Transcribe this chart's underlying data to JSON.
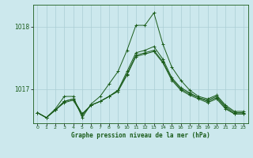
{
  "title": "Graphe pression niveau de la mer (hPa)",
  "background_color": "#cce8ed",
  "grid_color": "#aacdd4",
  "line_color": "#1a5c1a",
  "xlim": [
    -0.5,
    23.5
  ],
  "ylim": [
    1016.45,
    1018.35
  ],
  "yticks": [
    1017,
    1018
  ],
  "xticks": [
    0,
    1,
    2,
    3,
    4,
    5,
    6,
    7,
    8,
    9,
    10,
    11,
    12,
    13,
    14,
    15,
    16,
    17,
    18,
    19,
    20,
    21,
    22,
    23
  ],
  "series": [
    [
      1016.62,
      1016.54,
      1016.68,
      1016.88,
      1016.88,
      1016.54,
      1016.76,
      1016.88,
      1017.08,
      1017.28,
      1017.62,
      1018.02,
      1018.02,
      1018.22,
      1017.72,
      1017.35,
      1017.14,
      1016.98,
      1016.88,
      1016.84,
      1016.9,
      1016.74,
      1016.64,
      1016.64
    ],
    [
      1016.62,
      1016.54,
      1016.66,
      1016.78,
      1016.82,
      1016.58,
      1016.74,
      1016.8,
      1016.88,
      1016.98,
      1017.28,
      1017.58,
      1017.62,
      1017.68,
      1017.48,
      1017.18,
      1017.02,
      1016.94,
      1016.86,
      1016.82,
      1016.88,
      1016.72,
      1016.62,
      1016.62
    ],
    [
      1016.62,
      1016.54,
      1016.66,
      1016.8,
      1016.84,
      1016.6,
      1016.74,
      1016.8,
      1016.88,
      1016.98,
      1017.24,
      1017.54,
      1017.58,
      1017.62,
      1017.44,
      1017.16,
      1017.0,
      1016.92,
      1016.86,
      1016.8,
      1016.86,
      1016.7,
      1016.6,
      1016.6
    ],
    [
      1016.62,
      1016.54,
      1016.66,
      1016.8,
      1016.84,
      1016.6,
      1016.74,
      1016.8,
      1016.88,
      1016.96,
      1017.22,
      1017.52,
      1017.56,
      1017.6,
      1017.42,
      1017.14,
      1016.98,
      1016.9,
      1016.84,
      1016.78,
      1016.84,
      1016.68,
      1016.6,
      1016.6
    ]
  ]
}
